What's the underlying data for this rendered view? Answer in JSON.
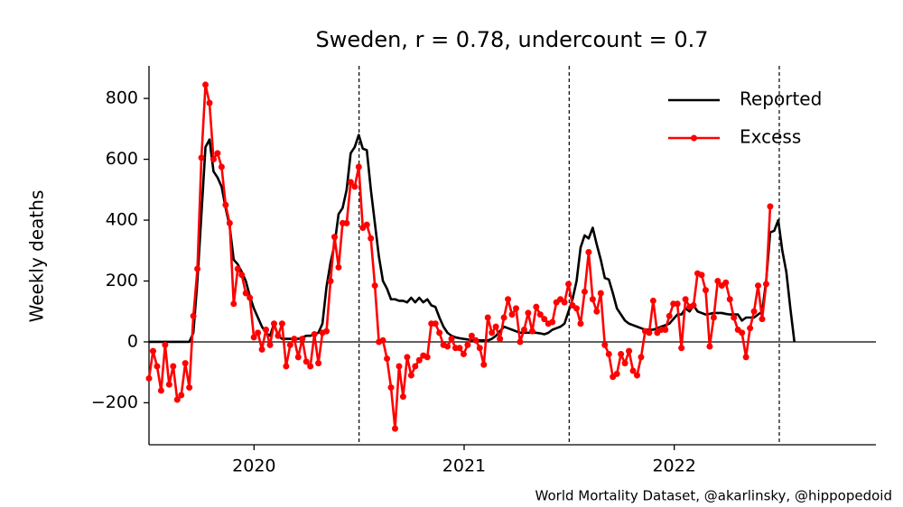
{
  "chart_data": {
    "type": "line",
    "title": "Sweden, r = 0.78, undercount = 0.7",
    "y_label": "Weekly deaths",
    "source": "World Mortality Dataset, @akarlinsky, @hippopedoid",
    "xlim": [
      2019.5,
      2022.96
    ],
    "xticks": [
      2020,
      2021,
      2022
    ],
    "ylim": [
      -338,
      907
    ],
    "yticks": [
      {
        "value": -200,
        "label": "−200"
      },
      0,
      200,
      400,
      600,
      800
    ],
    "vlines": [
      2020.5,
      2021.5,
      2022.5
    ],
    "zero_line": true,
    "legend": "upper right",
    "x": [
      2019.5,
      2019.5192,
      2019.5384,
      2019.5576,
      2019.5768,
      2019.596,
      2019.6152,
      2019.6344,
      2019.6536,
      2019.6728,
      2019.692,
      2019.7112,
      2019.7304,
      2019.7496,
      2019.7688,
      2019.788,
      2019.8072,
      2019.8264,
      2019.8456,
      2019.8648,
      2019.884,
      2019.9032,
      2019.9224,
      2019.9416,
      2019.9608,
      2019.98,
      2019.9992,
      2020.0184,
      2020.0376,
      2020.0568,
      2020.076,
      2020.0952,
      2020.1144,
      2020.1336,
      2020.1528,
      2020.172,
      2020.1912,
      2020.2104,
      2020.2296,
      2020.2488,
      2020.268,
      2020.2872,
      2020.3064,
      2020.3256,
      2020.3448,
      2020.364,
      2020.3832,
      2020.4024,
      2020.4216,
      2020.4408,
      2020.46,
      2020.4792,
      2020.4984,
      2020.5176,
      2020.5368,
      2020.556,
      2020.5752,
      2020.5944,
      2020.6136,
      2020.6328,
      2020.652,
      2020.6712,
      2020.6904,
      2020.7096,
      2020.7288,
      2020.748,
      2020.7672,
      2020.7864,
      2020.8056,
      2020.8248,
      2020.844,
      2020.8632,
      2020.8824,
      2020.9016,
      2020.9208,
      2020.94,
      2020.9592,
      2020.9784,
      2020.9976,
      2021.0168,
      2021.036,
      2021.0552,
      2021.0744,
      2021.0936,
      2021.1128,
      2021.132,
      2021.1512,
      2021.1704,
      2021.1896,
      2021.2088,
      2021.228,
      2021.2472,
      2021.2664,
      2021.2856,
      2021.3048,
      2021.324,
      2021.3432,
      2021.3624,
      2021.3816,
      2021.4008,
      2021.42,
      2021.4392,
      2021.4584,
      2021.4776,
      2021.4968,
      2021.516,
      2021.5352,
      2021.5544,
      2021.5736,
      2021.5928,
      2021.612,
      2021.6312,
      2021.6504,
      2021.6696,
      2021.6888,
      2021.708,
      2021.7272,
      2021.7464,
      2021.7656,
      2021.7848,
      2021.804,
      2021.8232,
      2021.8424,
      2021.8616,
      2021.8808,
      2021.9,
      2021.9192,
      2021.9384,
      2021.9576,
      2021.9768,
      2021.996,
      2022.0152,
      2022.0344,
      2022.0536,
      2022.0728,
      2022.092,
      2022.1112,
      2022.1304,
      2022.1496,
      2022.1688,
      2022.188,
      2022.2072,
      2022.2264,
      2022.2456,
      2022.2648,
      2022.284,
      2022.3032,
      2022.3224,
      2022.3416,
      2022.3608,
      2022.38,
      2022.3992,
      2022.4184,
      2022.4376,
      2022.4568,
      2022.476,
      2022.4952,
      2022.5144,
      2022.5336,
      2022.5528,
      2022.572
    ],
    "series": [
      {
        "name": "Reported",
        "color": "#000000",
        "marker": false,
        "values": [
          0,
          0,
          0,
          0,
          0,
          0,
          0,
          0,
          0,
          0,
          0,
          30,
          200,
          420,
          640,
          665,
          560,
          540,
          510,
          440,
          380,
          270,
          255,
          230,
          200,
          150,
          110,
          80,
          50,
          30,
          20,
          60,
          20,
          10,
          10,
          10,
          10,
          10,
          15,
          20,
          20,
          25,
          30,
          60,
          180,
          260,
          320,
          420,
          440,
          500,
          620,
          640,
          680,
          635,
          630,
          500,
          390,
          280,
          200,
          175,
          140,
          140,
          135,
          135,
          130,
          145,
          130,
          145,
          130,
          140,
          120,
          115,
          80,
          50,
          30,
          20,
          15,
          12,
          10,
          8,
          5,
          5,
          5,
          5,
          5,
          10,
          20,
          35,
          50,
          45,
          40,
          35,
          30,
          30,
          30,
          30,
          30,
          28,
          25,
          30,
          40,
          45,
          50,
          60,
          100,
          140,
          200,
          310,
          350,
          340,
          375,
          320,
          270,
          210,
          205,
          160,
          110,
          90,
          70,
          60,
          55,
          50,
          45,
          40,
          40,
          40,
          45,
          50,
          55,
          60,
          75,
          90,
          90,
          110,
          100,
          120,
          100,
          95,
          90,
          92,
          95,
          95,
          95,
          92,
          90,
          90,
          90,
          70,
          80,
          80,
          80,
          90,
          100,
          200,
          360,
          365,
          400,
          300,
          230,
          110,
          0
        ]
      },
      {
        "name": "Excess",
        "color": "#ff0000",
        "marker": true,
        "values": [
          -120,
          -30,
          -80,
          -160,
          -10,
          -140,
          -80,
          -190,
          -175,
          -70,
          -150,
          85,
          240,
          605,
          845,
          785,
          600,
          620,
          575,
          450,
          390,
          125,
          240,
          220,
          160,
          145,
          15,
          30,
          -25,
          40,
          -10,
          60,
          20,
          60,
          -80,
          -10,
          10,
          -50,
          10,
          -65,
          -80,
          25,
          -70,
          30,
          35,
          200,
          345,
          245,
          390,
          390,
          525,
          510,
          575,
          375,
          385,
          340,
          185,
          0,
          5,
          -55,
          -150,
          -285,
          -80,
          -180,
          -50,
          -110,
          -80,
          -60,
          -45,
          -50,
          60,
          60,
          30,
          -10,
          -15,
          10,
          -20,
          -20,
          -40,
          -10,
          20,
          5,
          -20,
          -75,
          80,
          30,
          50,
          10,
          80,
          140,
          90,
          110,
          0,
          40,
          95,
          35,
          115,
          90,
          75,
          60,
          65,
          130,
          140,
          130,
          190,
          120,
          110,
          60,
          165,
          295,
          140,
          100,
          160,
          -10,
          -40,
          -115,
          -105,
          -40,
          -70,
          -30,
          -95,
          -110,
          -50,
          35,
          30,
          135,
          30,
          40,
          40,
          85,
          125,
          125,
          -20,
          140,
          115,
          120,
          225,
          220,
          170,
          -15,
          80,
          200,
          185,
          195,
          140,
          80,
          40,
          30,
          -50,
          45,
          100,
          185,
          75,
          190,
          445,
          null,
          null,
          null,
          null,
          null,
          null
        ]
      }
    ]
  }
}
